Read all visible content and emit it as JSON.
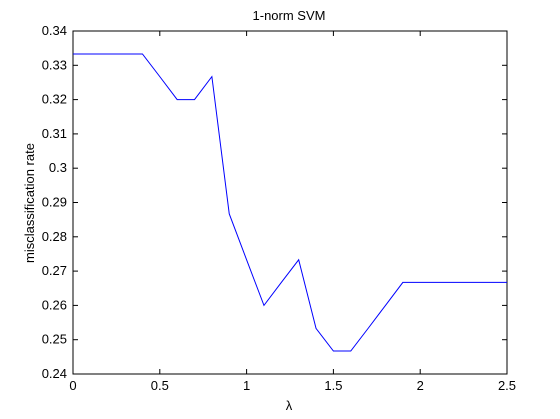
{
  "chart_data": {
    "type": "line",
    "title": "1-norm SVM",
    "xlabel": "λ",
    "ylabel": "misclassification rate",
    "xlim": [
      0,
      2.5
    ],
    "ylim": [
      0.24,
      0.34
    ],
    "grid": false,
    "box": true,
    "xticks": [
      0,
      0.5,
      1,
      1.5,
      2,
      2.5
    ],
    "xtick_labels": [
      "0",
      "0.5",
      "1",
      "1.5",
      "2",
      "2.5"
    ],
    "yticks": [
      0.24,
      0.25,
      0.26,
      0.27,
      0.28,
      0.29,
      0.3,
      0.31,
      0.32,
      0.33,
      0.34
    ],
    "ytick_labels": [
      "0.24",
      "0.25",
      "0.26",
      "0.27",
      "0.28",
      "0.29",
      "0.3",
      "0.31",
      "0.32",
      "0.33",
      "0.34"
    ],
    "series": [
      {
        "color": "#0000ff",
        "x": [
          0,
          0.1,
          0.2,
          0.3,
          0.4,
          0.5,
          0.6,
          0.7,
          0.8,
          0.9,
          1.0,
          1.1,
          1.2,
          1.3,
          1.4,
          1.5,
          1.6,
          1.7,
          1.8,
          1.9,
          2.0,
          2.1,
          2.2,
          2.3,
          2.4,
          2.5
        ],
        "y": [
          0.3333,
          0.3333,
          0.3333,
          0.3333,
          0.3333,
          0.3267,
          0.32,
          0.32,
          0.3267,
          0.2867,
          0.2733,
          0.26,
          0.2667,
          0.2733,
          0.2533,
          0.2467,
          0.2467,
          0.2533,
          0.26,
          0.2667,
          0.2667,
          0.2667,
          0.2667,
          0.2667,
          0.2667,
          0.2667
        ]
      }
    ]
  }
}
